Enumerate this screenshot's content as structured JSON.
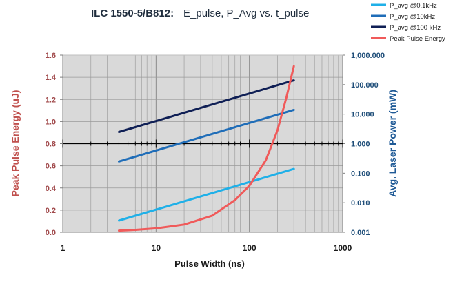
{
  "chart_data": {
    "type": "line",
    "title": "ILC 1550-5/B812:",
    "subtitle": "E_pulse, P_Avg vs. t_pulse",
    "xlabel": "Pulse Width (ns)",
    "ylabel_left": "Peak Pulse Energy (uJ)",
    "ylabel_right": "Avg. Laser Power (mW)",
    "x_scale": "log",
    "xlim": [
      1,
      1000
    ],
    "x_ticks": [
      "1",
      "10",
      "100",
      "1000"
    ],
    "y_left_scale": "linear",
    "ylim_left": [
      0,
      1.6
    ],
    "y_left_ticks": [
      "0.0",
      "0.2",
      "0.4",
      "0.6",
      "0.8",
      "1.0",
      "1.2",
      "1.4",
      "1.6"
    ],
    "y_right_scale": "log",
    "ylim_right": [
      0.001,
      1000
    ],
    "y_right_ticks": [
      "0.001",
      "0.010",
      "0.100",
      "1.000",
      "10.000",
      "100.000",
      "1,000.000"
    ],
    "grid": true,
    "legend_position": "top-right",
    "series": [
      {
        "name": "P_avg @0.1kHz",
        "axis": "right",
        "color": "#1fb0e8",
        "x": [
          4,
          300
        ],
        "values": [
          0.0025,
          0.14
        ]
      },
      {
        "name": "P_avg @10kHz",
        "axis": "right",
        "color": "#1f6db8",
        "x": [
          4,
          300
        ],
        "values": [
          0.25,
          14
        ]
      },
      {
        "name": "P_avg @100 kHz",
        "axis": "right",
        "color": "#0f1f55",
        "x": [
          4,
          300
        ],
        "values": [
          2.5,
          140
        ]
      },
      {
        "name": "Peak Pulse Energy",
        "axis": "left",
        "color": "#f05a5a",
        "x": [
          4,
          6,
          10,
          20,
          40,
          70,
          100,
          150,
          200,
          250,
          300
        ],
        "values": [
          0.015,
          0.022,
          0.035,
          0.07,
          0.15,
          0.29,
          0.42,
          0.65,
          0.92,
          1.22,
          1.5
        ]
      }
    ]
  }
}
